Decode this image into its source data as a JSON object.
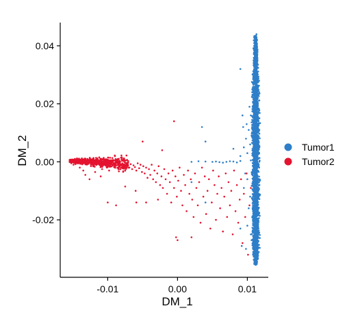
{
  "chart_data": {
    "type": "scatter",
    "title": "",
    "xlabel": "DM_1",
    "ylabel": "DM_2",
    "xlim": [
      -0.0168,
      0.013
    ],
    "ylim": [
      -0.0398,
      0.048
    ],
    "xticks": [
      {
        "value": -0.01,
        "label": "-0.01"
      },
      {
        "value": 0.0,
        "label": "0.00"
      },
      {
        "value": 0.01,
        "label": "0.01"
      }
    ],
    "yticks": [
      {
        "value": 0.04,
        "label": "0.04"
      },
      {
        "value": 0.02,
        "label": "0.02"
      },
      {
        "value": 0.0,
        "label": "0.00"
      },
      {
        "value": -0.02,
        "label": "-0.02"
      }
    ],
    "grid": false,
    "legend_position": "right",
    "series": [
      {
        "name": "Tumor1",
        "color": "#2E7EC8",
        "points": [
          [
            0.0113,
            0.044
          ],
          [
            0.0114,
            0.042
          ],
          [
            0.0113,
            0.04
          ],
          [
            0.0112,
            0.038
          ],
          [
            0.0114,
            0.036
          ],
          [
            0.0113,
            0.034
          ],
          [
            0.0112,
            0.032
          ],
          [
            0.0114,
            0.03
          ],
          [
            0.0113,
            0.028
          ],
          [
            0.0111,
            0.026
          ],
          [
            0.0114,
            0.025
          ],
          [
            0.0112,
            0.023
          ],
          [
            0.011,
            0.021
          ],
          [
            0.0115,
            0.02
          ],
          [
            0.0109,
            0.018
          ],
          [
            0.0112,
            0.017
          ],
          [
            0.0105,
            0.016
          ],
          [
            0.0116,
            0.015
          ],
          [
            0.0108,
            0.014
          ],
          [
            0.011,
            0.012
          ],
          [
            0.0102,
            0.011
          ],
          [
            0.0115,
            0.01
          ],
          [
            0.0106,
            0.009
          ],
          [
            0.0098,
            0.008
          ],
          [
            0.0112,
            0.007
          ],
          [
            0.0104,
            0.006
          ],
          [
            0.0095,
            0.005
          ],
          [
            0.0113,
            0.004
          ],
          [
            0.01,
            0.003
          ],
          [
            0.009,
            0.002
          ],
          [
            0.011,
            0.001
          ],
          [
            0.0105,
            0.0005
          ],
          [
            0.009,
            0.0003
          ],
          [
            0.008,
            0.0001
          ],
          [
            0.007,
            0.0
          ],
          [
            0.006,
            -0.0001
          ],
          [
            0.005,
            0.0
          ],
          [
            0.004,
            0.0001
          ],
          [
            0.003,
            0.0002
          ],
          [
            0.002,
            0.0
          ],
          [
            0.0085,
            -0.0002
          ],
          [
            0.0075,
            0.0002
          ],
          [
            0.0065,
            -0.0003
          ],
          [
            0.0055,
            0.0001
          ],
          [
            0.0112,
            -0.001
          ],
          [
            0.0108,
            -0.003
          ],
          [
            0.0114,
            -0.005
          ],
          [
            0.01,
            -0.006
          ],
          [
            0.0111,
            -0.008
          ],
          [
            0.0095,
            -0.009
          ],
          [
            0.0113,
            -0.01
          ],
          [
            0.0104,
            -0.012
          ],
          [
            0.011,
            -0.014
          ],
          [
            0.0114,
            -0.015
          ],
          [
            0.0102,
            -0.016
          ],
          [
            0.0112,
            -0.018
          ],
          [
            0.0108,
            -0.02
          ],
          [
            0.0113,
            -0.021
          ],
          [
            0.01,
            -0.022
          ],
          [
            0.0111,
            -0.024
          ],
          [
            0.0114,
            -0.026
          ],
          [
            0.0106,
            -0.027
          ],
          [
            0.0112,
            -0.028
          ],
          [
            0.0109,
            -0.03
          ],
          [
            0.0113,
            -0.031
          ],
          [
            0.0108,
            -0.032
          ],
          [
            0.0111,
            -0.033
          ],
          [
            0.011,
            -0.0345
          ],
          [
            0.0112,
            -0.0355
          ],
          [
            0.0098,
            -0.03
          ],
          [
            0.0092,
            -0.029
          ],
          [
            0.0094,
            0.012
          ],
          [
            0.0093,
            0.016
          ],
          [
            0.008,
            0.0045
          ],
          [
            0.004,
            0.007
          ],
          [
            0.0035,
            0.012
          ],
          [
            0.009,
            0.032
          ],
          [
            0.002,
            -0.007
          ],
          [
            0.004,
            -0.014
          ],
          [
            0.009,
            -0.023
          ],
          [
            0.0107,
            0.024
          ],
          [
            0.0109,
            0.029
          ],
          [
            0.0111,
            0.035
          ],
          [
            0.0116,
            0.006
          ],
          [
            0.0117,
            -0.002
          ],
          [
            0.0116,
            -0.012
          ],
          [
            0.0105,
            -0.025
          ],
          [
            0.0103,
            0.019
          ],
          [
            0.0099,
            0.013
          ],
          [
            0.0097,
            -0.004
          ]
        ]
      },
      {
        "name": "Tumor2",
        "color": "#E4132F",
        "points": [
          [
            -0.0153,
            0.0002
          ],
          [
            -0.0152,
            -0.0005
          ],
          [
            -0.015,
            0.0008
          ],
          [
            -0.0149,
            -0.001
          ],
          [
            -0.0147,
            0.001
          ],
          [
            -0.0146,
            -0.0008
          ],
          [
            -0.0144,
            0.0012
          ],
          [
            -0.0143,
            -0.0004
          ],
          [
            -0.0141,
            0.0011
          ],
          [
            -0.0139,
            0.0003
          ],
          [
            -0.0137,
            0.0012
          ],
          [
            -0.0135,
            -0.0002
          ],
          [
            -0.0133,
            0.0011
          ],
          [
            -0.0131,
            0.0006
          ],
          [
            -0.0129,
            0.001
          ],
          [
            -0.0127,
            0.0002
          ],
          [
            -0.0125,
            0.0009
          ],
          [
            -0.0123,
            0.0001
          ],
          [
            -0.0121,
            0.0007
          ],
          [
            -0.0119,
            -0.0001
          ],
          [
            -0.0117,
            0.0006
          ],
          [
            -0.0115,
            -0.0003
          ],
          [
            -0.0113,
            0.0004
          ],
          [
            -0.0111,
            -0.0002
          ],
          [
            -0.0109,
            0.0003
          ],
          [
            -0.0107,
            -0.0004
          ],
          [
            -0.0105,
            0.0002
          ],
          [
            -0.0103,
            -0.0003
          ],
          [
            -0.0101,
            0.0001
          ],
          [
            -0.0099,
            -0.0002
          ],
          [
            -0.0097,
            0.0
          ],
          [
            -0.0095,
            -0.0005
          ],
          [
            -0.0093,
            0.0001
          ],
          [
            -0.0091,
            -0.0004
          ],
          [
            -0.0089,
            -0.001
          ],
          [
            -0.0087,
            -0.0002
          ],
          [
            -0.0085,
            -0.0008
          ],
          [
            -0.0083,
            -0.0001
          ],
          [
            -0.0081,
            -0.0012
          ],
          [
            -0.0079,
            -0.0005
          ],
          [
            -0.0077,
            -0.0015
          ],
          [
            -0.0075,
            -0.0003
          ],
          [
            -0.0073,
            -0.001
          ],
          [
            -0.0071,
            0.0
          ],
          [
            -0.0069,
            -0.002
          ],
          [
            -0.0067,
            -0.0008
          ],
          [
            -0.0065,
            -0.0025
          ],
          [
            -0.0063,
            -0.0012
          ],
          [
            -0.0061,
            -0.0018
          ],
          [
            -0.0059,
            -0.003
          ],
          [
            -0.0057,
            -0.0005
          ],
          [
            -0.0055,
            -0.0022
          ],
          [
            -0.0053,
            -0.001
          ],
          [
            -0.0051,
            -0.0035
          ],
          [
            -0.0049,
            -0.0015
          ],
          [
            -0.0047,
            -0.004
          ],
          [
            -0.0045,
            -0.002
          ],
          [
            -0.0043,
            -0.0055
          ],
          [
            -0.0041,
            -0.0025
          ],
          [
            -0.0039,
            -0.0045
          ],
          [
            -0.0037,
            -0.001
          ],
          [
            -0.0035,
            -0.006
          ],
          [
            -0.0033,
            -0.003
          ],
          [
            -0.0031,
            -0.007
          ],
          [
            -0.0029,
            -0.004
          ],
          [
            -0.0027,
            -0.0015
          ],
          [
            -0.0025,
            -0.008
          ],
          [
            -0.0023,
            -0.005
          ],
          [
            -0.0021,
            -0.009
          ],
          [
            -0.0019,
            -0.0025
          ],
          [
            -0.0017,
            -0.006
          ],
          [
            -0.0015,
            -0.011
          ],
          [
            -0.0013,
            -0.004
          ],
          [
            -0.0011,
            -0.007
          ],
          [
            -0.0009,
            -0.014
          ],
          [
            -0.0007,
            -0.003
          ],
          [
            -0.0005,
            -0.009
          ],
          [
            -0.0003,
            -0.005
          ],
          [
            -0.0001,
            -0.012
          ],
          [
            0.0001,
            -0.0065
          ],
          [
            0.0003,
            -0.002
          ],
          [
            0.0005,
            -0.01
          ],
          [
            0.0007,
            -0.015
          ],
          [
            0.0009,
            -0.0045
          ],
          [
            0.0011,
            -0.008
          ],
          [
            0.0013,
            -0.017
          ],
          [
            0.0015,
            -0.003
          ],
          [
            0.0017,
            -0.011
          ],
          [
            0.0019,
            -0.006
          ],
          [
            0.0021,
            -0.013
          ],
          [
            0.0023,
            -0.019
          ],
          [
            0.0025,
            -0.004
          ],
          [
            0.0027,
            -0.009
          ],
          [
            0.0029,
            -0.015
          ],
          [
            0.0031,
            -0.007
          ],
          [
            0.0033,
            -0.021
          ],
          [
            0.0035,
            -0.002
          ],
          [
            0.0037,
            -0.012
          ],
          [
            0.0039,
            -0.005
          ],
          [
            0.0041,
            -0.018
          ],
          [
            0.0043,
            -0.01
          ],
          [
            0.0045,
            -0.006
          ],
          [
            0.0047,
            -0.023
          ],
          [
            0.0049,
            -0.014
          ],
          [
            0.0051,
            -0.003
          ],
          [
            0.0053,
            -0.008
          ],
          [
            0.0055,
            -0.02
          ],
          [
            0.0057,
            -0.011
          ],
          [
            0.0059,
            -0.005
          ],
          [
            0.0061,
            -0.016
          ],
          [
            0.0063,
            -0.009
          ],
          [
            0.0065,
            -0.024
          ],
          [
            0.0067,
            -0.012
          ],
          [
            0.0069,
            -0.004
          ],
          [
            0.0071,
            -0.019
          ],
          [
            0.0073,
            -0.007
          ],
          [
            0.0075,
            -0.015
          ],
          [
            0.0077,
            -0.01
          ],
          [
            0.0079,
            -0.025
          ],
          [
            0.0081,
            -0.003
          ],
          [
            0.0083,
            -0.017
          ],
          [
            0.0085,
            -0.008
          ],
          [
            0.0087,
            -0.021
          ],
          [
            0.0089,
            -0.013
          ],
          [
            0.0091,
            -0.006
          ],
          [
            0.0093,
            -0.028
          ],
          [
            0.0095,
            -0.011
          ],
          [
            0.0097,
            -0.019
          ],
          [
            0.0099,
            -0.004
          ],
          [
            0.0101,
            -0.032
          ],
          [
            0.0103,
            -0.015
          ],
          [
            0.0105,
            -0.009
          ],
          [
            0.002,
            -0.026
          ],
          [
            0.0,
            -0.027
          ],
          [
            -0.0002,
            -0.026
          ],
          [
            -0.0005,
            0.014
          ],
          [
            -0.005,
            0.007
          ],
          [
            -0.0022,
            0.004
          ],
          [
            -0.0059,
            -0.014
          ],
          [
            -0.01,
            -0.014
          ],
          [
            -0.0088,
            -0.015
          ],
          [
            -0.0028,
            -0.013
          ],
          [
            -0.0045,
            -0.014
          ],
          [
            -0.007,
            -0.002
          ],
          [
            -0.011,
            -0.005
          ],
          [
            -0.0126,
            -0.006
          ],
          [
            -0.0135,
            -0.003
          ],
          [
            -0.014,
            -0.002
          ],
          [
            -0.0132,
            -0.0045
          ],
          [
            -0.0118,
            -0.0035
          ],
          [
            -0.0108,
            -0.0025
          ],
          [
            -0.0124,
            -0.0015
          ],
          [
            -0.0098,
            -0.003
          ],
          [
            -0.006,
            -0.01
          ],
          [
            -0.0075,
            -0.0085
          ]
        ]
      }
    ]
  }
}
